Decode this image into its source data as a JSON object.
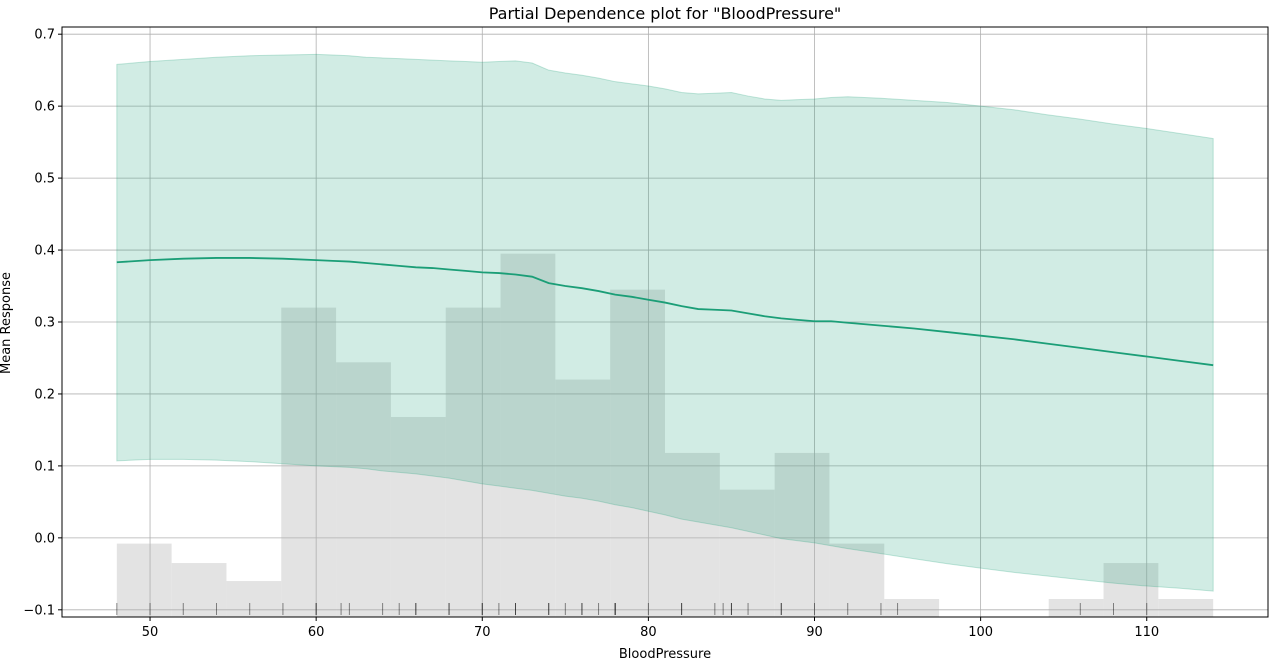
{
  "chart_data": {
    "type": "line",
    "title": "Partial Dependence plot for \"BloodPressure\"",
    "xlabel": "BloodPressure",
    "ylabel": "Mean Response",
    "xlim": [
      44.7,
      117.3
    ],
    "ylim": [
      -0.11,
      0.71
    ],
    "grid": true,
    "x_ticks": [
      50,
      60,
      70,
      80,
      90,
      100,
      110
    ],
    "y_ticks": [
      -0.1,
      0.0,
      0.1,
      0.2,
      0.3,
      0.4,
      0.5,
      0.6,
      0.7
    ],
    "x_tick_labels": [
      "50",
      "60",
      "70",
      "80",
      "90",
      "100",
      "110"
    ],
    "y_tick_labels": [
      "−0.1",
      "0.0",
      "0.1",
      "0.2",
      "0.3",
      "0.4",
      "0.5",
      "0.6",
      "0.7"
    ],
    "colors": {
      "line": "#1b9e77",
      "band": "#1b9e77",
      "hist": "#d9d9d9",
      "rug": "#000000",
      "grid": "#b0b0b0"
    },
    "series": [
      {
        "x": [
          48,
          50,
          52,
          54,
          56,
          58,
          60,
          61,
          62,
          63,
          64,
          65,
          66,
          67,
          68,
          69,
          70,
          71,
          72,
          73,
          74,
          75,
          76,
          77,
          78,
          79,
          80,
          81,
          82,
          83,
          84,
          85,
          86,
          87,
          88,
          89,
          90,
          91,
          92,
          94,
          96,
          98,
          100,
          102,
          104,
          106,
          108,
          110,
          112,
          114
        ],
        "mean": [
          0.383,
          0.386,
          0.388,
          0.389,
          0.389,
          0.388,
          0.386,
          0.385,
          0.384,
          0.382,
          0.38,
          0.378,
          0.376,
          0.375,
          0.373,
          0.371,
          0.369,
          0.368,
          0.366,
          0.363,
          0.354,
          0.35,
          0.347,
          0.343,
          0.338,
          0.335,
          0.331,
          0.327,
          0.322,
          0.318,
          0.317,
          0.316,
          0.312,
          0.308,
          0.305,
          0.303,
          0.301,
          0.301,
          0.299,
          0.295,
          0.291,
          0.286,
          0.281,
          0.276,
          0.27,
          0.264,
          0.258,
          0.252,
          0.246,
          0.24
        ],
        "upper": [
          0.658,
          0.662,
          0.665,
          0.668,
          0.67,
          0.671,
          0.672,
          0.671,
          0.67,
          0.668,
          0.667,
          0.666,
          0.665,
          0.664,
          0.663,
          0.662,
          0.661,
          0.662,
          0.663,
          0.66,
          0.65,
          0.646,
          0.643,
          0.639,
          0.634,
          0.631,
          0.628,
          0.624,
          0.619,
          0.617,
          0.618,
          0.619,
          0.614,
          0.61,
          0.608,
          0.609,
          0.61,
          0.612,
          0.613,
          0.611,
          0.608,
          0.605,
          0.6,
          0.595,
          0.588,
          0.582,
          0.575,
          0.569,
          0.562,
          0.555
        ],
        "lower": [
          0.107,
          0.109,
          0.109,
          0.108,
          0.106,
          0.103,
          0.1,
          0.099,
          0.098,
          0.096,
          0.093,
          0.091,
          0.089,
          0.086,
          0.083,
          0.079,
          0.075,
          0.072,
          0.069,
          0.066,
          0.062,
          0.058,
          0.055,
          0.051,
          0.046,
          0.042,
          0.037,
          0.032,
          0.026,
          0.022,
          0.018,
          0.014,
          0.009,
          0.004,
          -0.001,
          -0.004,
          -0.007,
          -0.011,
          -0.015,
          -0.022,
          -0.029,
          -0.036,
          -0.042,
          -0.048,
          -0.053,
          -0.058,
          -0.063,
          -0.067,
          -0.07,
          -0.074
        ]
      }
    ],
    "histogram": {
      "bin_edges": [
        48,
        51.3,
        54.6,
        57.9,
        61.2,
        64.5,
        67.8,
        71.1,
        74.4,
        77.7,
        81.0,
        84.3,
        87.6,
        90.9,
        94.2,
        97.5,
        100.8,
        104.1,
        107.4,
        110.7,
        114.0
      ],
      "heights": [
        -0.008,
        -0.035,
        -0.06,
        0.32,
        0.244,
        0.168,
        0.32,
        0.395,
        0.22,
        0.345,
        0.118,
        0.067,
        0.118,
        -0.008,
        -0.085,
        -0.11,
        -0.11,
        -0.085,
        -0.035,
        -0.085
      ]
    },
    "rug_x": [
      48,
      50,
      52,
      54,
      56,
      58,
      60,
      60,
      61.5,
      62,
      64,
      65,
      66,
      66,
      68,
      68,
      70,
      70,
      71,
      72,
      72,
      74,
      74,
      75,
      76,
      76,
      77,
      78,
      78,
      78,
      80,
      82,
      82,
      84,
      84.5,
      85,
      85,
      86,
      88,
      88,
      90,
      92,
      94,
      95,
      106,
      108,
      110
    ]
  }
}
